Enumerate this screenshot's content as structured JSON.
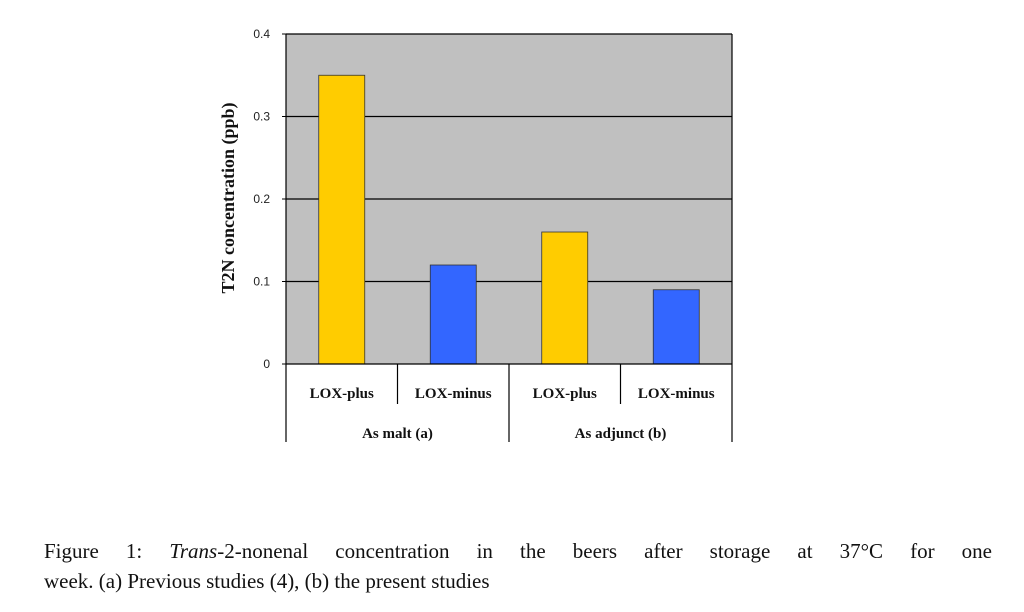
{
  "chart_data": {
    "type": "bar",
    "ylabel": "T2N concentration (ppb)",
    "ylim": [
      0,
      0.4
    ],
    "yticks": [
      "0",
      "0.1",
      "0.2",
      "0.3",
      "0.4"
    ],
    "ytick_values": [
      0,
      0.1,
      0.2,
      0.3,
      0.4
    ],
    "categories": [
      "LOX-plus",
      "LOX-minus",
      "LOX-plus",
      "LOX-minus"
    ],
    "groups": [
      "As malt (a)",
      "As adjunct (b)"
    ],
    "values": [
      0.35,
      0.12,
      0.16,
      0.09
    ],
    "bar_colors": [
      "#FFCC00",
      "#3366FF",
      "#FFCC00",
      "#3366FF"
    ],
    "plot_background": "#C0C0C0",
    "grid": true
  },
  "caption": {
    "prefix": "Figure 1: ",
    "italic": "Trans",
    "line1_rest": "-2-nonenal concentration in the beers after storage at 37°C for one",
    "line2": "week. (a) Previous studies (4), (b) the present studies"
  }
}
